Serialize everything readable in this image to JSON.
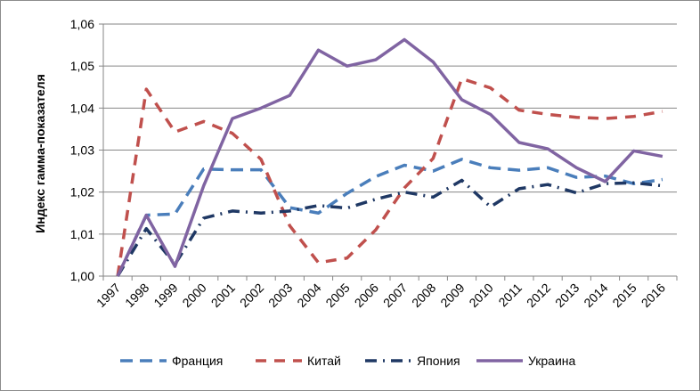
{
  "chart_data": {
    "type": "line",
    "title": "",
    "xlabel": "",
    "ylabel": "Индекс гамма-показателя",
    "categories": [
      "1997",
      "1998",
      "1999",
      "2000",
      "2001",
      "2002",
      "2003",
      "2004",
      "2005",
      "2006",
      "2007",
      "2008",
      "2009",
      "2010",
      "2011",
      "2012",
      "2013",
      "2014",
      "2015",
      "2016"
    ],
    "ylim": [
      1.0,
      1.06
    ],
    "yticks": [
      "1,00",
      "1,01",
      "1,02",
      "1,03",
      "1,04",
      "1,05",
      "1,06"
    ],
    "grid": true,
    "legend_position": "bottom",
    "series": [
      {
        "name": "Франция",
        "color": "#4a7ebb",
        "style": "long-dash",
        "values": [
          1.0,
          1.0145,
          1.0148,
          1.0255,
          1.0253,
          1.0253,
          1.0163,
          1.015,
          1.0197,
          1.0237,
          1.0264,
          1.025,
          1.0278,
          1.0258,
          1.0252,
          1.0258,
          1.0235,
          1.0238,
          1.022,
          1.023
        ]
      },
      {
        "name": "Китай",
        "color": "#c0504d",
        "style": "dash",
        "values": [
          1.0,
          1.0445,
          1.0343,
          1.0368,
          1.034,
          1.0278,
          1.012,
          1.0032,
          1.0043,
          1.011,
          1.021,
          1.028,
          1.047,
          1.0448,
          1.0395,
          1.0385,
          1.0378,
          1.0375,
          1.038,
          1.0392
        ]
      },
      {
        "name": "Япония",
        "color": "#1f3864",
        "style": "dash-dot",
        "values": [
          1.0,
          1.0113,
          1.0028,
          1.0138,
          1.0155,
          1.015,
          1.0155,
          1.0168,
          1.0162,
          1.0183,
          1.02,
          1.0188,
          1.0228,
          1.0165,
          1.0208,
          1.0218,
          1.0198,
          1.022,
          1.0222,
          1.0215
        ]
      },
      {
        "name": "Украина",
        "color": "#8064a2",
        "style": "solid",
        "values": [
          1.0,
          1.0145,
          1.0023,
          1.0215,
          1.0375,
          1.04,
          1.043,
          1.0538,
          1.05,
          1.0515,
          1.0563,
          1.051,
          1.042,
          1.0385,
          1.0318,
          1.0303,
          1.0258,
          1.0225,
          1.0298,
          1.0285
        ]
      }
    ]
  }
}
